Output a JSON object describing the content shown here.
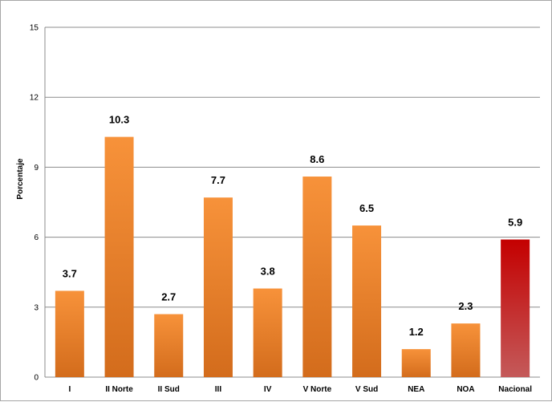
{
  "chart_data": {
    "type": "bar",
    "title": "",
    "xlabel": "",
    "ylabel": "Porcentaje",
    "ylim": [
      0,
      15
    ],
    "yticks": [
      0,
      3,
      6,
      9,
      12,
      15
    ],
    "grid": true,
    "legend": "none",
    "categories": [
      "I",
      "II Norte",
      "II Sud",
      "III",
      "IV",
      "V Norte",
      "V Sud",
      "NEA",
      "NOA",
      "Nacional"
    ],
    "values": [
      3.7,
      10.3,
      2.7,
      7.7,
      3.8,
      8.6,
      6.5,
      1.2,
      2.3,
      5.9
    ],
    "data_labels": [
      "3.7",
      "10.3",
      "2.7",
      "7.7",
      "3.8",
      "8.6",
      "6.5",
      "1.2",
      "2.3",
      "5.9"
    ],
    "colors": {
      "bar_top": "#f7923a",
      "bar_bottom": "#d36c1c",
      "highlight_top": "#c40000",
      "highlight_bottom": "#c45a5a",
      "highlight_category": "Nacional",
      "gridline": "#8c8c8c"
    }
  }
}
